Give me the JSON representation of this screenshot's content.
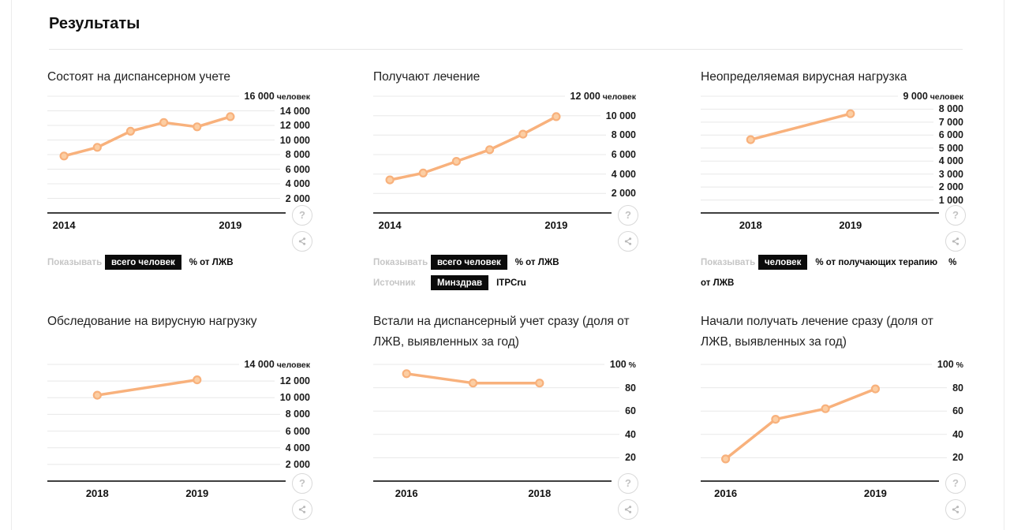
{
  "heading": "Результаты",
  "colors": {
    "accent_line": "#f8b17c",
    "marker_fill": "#fccea3",
    "grid_line": "#e8e8e8",
    "axis_line": "#3f3f3f",
    "chip_bg": "#0b0b0b",
    "muted_label": "#c6c6c6"
  },
  "icons": {
    "help": "?",
    "share": "share-icon"
  },
  "chart_data": [
    {
      "type": "line",
      "title": "Состоят на диспансерном учете",
      "unit": "человек",
      "x": [
        2014,
        2015,
        2016,
        2017,
        2018,
        2019
      ],
      "values": [
        7800,
        9000,
        11200,
        12400,
        11800,
        13200
      ],
      "ylim": [
        0,
        16000
      ],
      "yticks": [
        16000,
        14000,
        12000,
        10000,
        8000,
        6000,
        4000,
        2000
      ],
      "xtick_labels": [
        "2014",
        "2019"
      ],
      "grid": true,
      "legend": "none",
      "controls": [
        {
          "label": "Показывать",
          "options": [
            {
              "text": "всего человек",
              "selected": true
            },
            {
              "text": "% от ЛЖВ",
              "selected": false
            }
          ]
        }
      ]
    },
    {
      "type": "line",
      "title": "Получают лечение",
      "unit": "человек",
      "x": [
        2014,
        2015,
        2016,
        2017,
        2018,
        2019
      ],
      "values": [
        3400,
        4100,
        5300,
        6500,
        8100,
        9900
      ],
      "ylim": [
        0,
        12000
      ],
      "yticks": [
        12000,
        10000,
        8000,
        6000,
        4000,
        2000
      ],
      "xtick_labels": [
        "2014",
        "2019"
      ],
      "grid": true,
      "legend": "none",
      "controls": [
        {
          "label": "Показывать",
          "options": [
            {
              "text": "всего человек",
              "selected": true
            },
            {
              "text": "% от ЛЖВ",
              "selected": false
            }
          ]
        },
        {
          "label": "Источник",
          "options": [
            {
              "text": "Минздрав",
              "selected": true
            },
            {
              "text": "ITPCru",
              "selected": false
            }
          ]
        }
      ]
    },
    {
      "type": "line",
      "title": "Неопределяемая вирусная нагрузка",
      "unit": "человек",
      "x": [
        2018,
        2019
      ],
      "values": [
        5650,
        7650
      ],
      "ylim": [
        0,
        9000
      ],
      "yticks": [
        9000,
        8000,
        7000,
        6000,
        5000,
        4000,
        3000,
        2000,
        1000
      ],
      "xtick_labels": [
        "2018",
        "2019"
      ],
      "grid": true,
      "legend": "none",
      "controls": [
        {
          "label": "Показывать",
          "options": [
            {
              "text": "человек",
              "selected": true
            },
            {
              "text": "% от получающих терапию",
              "selected": false
            },
            {
              "text": "% от ЛЖВ",
              "selected": false
            }
          ]
        }
      ]
    },
    {
      "type": "line",
      "title": "Обследование на вирусную нагрузку",
      "unit": "человек",
      "x": [
        2018,
        2019
      ],
      "values": [
        10300,
        12150
      ],
      "ylim": [
        0,
        14000
      ],
      "yticks": [
        14000,
        12000,
        10000,
        8000,
        6000,
        4000,
        2000
      ],
      "xtick_labels": [
        "2018",
        "2019"
      ],
      "grid": true,
      "legend": "none",
      "controls": []
    },
    {
      "type": "line",
      "title": "Встали на диспансерный учет сразу (доля от ЛЖВ, выявленных за год)",
      "unit": "%",
      "x": [
        2016,
        2017,
        2018
      ],
      "values": [
        92,
        84,
        84
      ],
      "ylim": [
        0,
        100
      ],
      "yticks": [
        100,
        80,
        60,
        40,
        20
      ],
      "xtick_labels": [
        "2016",
        "2018"
      ],
      "grid": true,
      "legend": "none",
      "controls": []
    },
    {
      "type": "line",
      "title": "Начали получать лечение сразу (доля от ЛЖВ, выявленных за год)",
      "unit": "%",
      "x": [
        2016,
        2017,
        2018,
        2019
      ],
      "values": [
        19,
        53,
        62,
        79
      ],
      "ylim": [
        0,
        100
      ],
      "yticks": [
        100,
        80,
        60,
        40,
        20
      ],
      "xtick_labels": [
        "2016",
        "2019"
      ],
      "grid": true,
      "legend": "none",
      "controls": []
    }
  ]
}
